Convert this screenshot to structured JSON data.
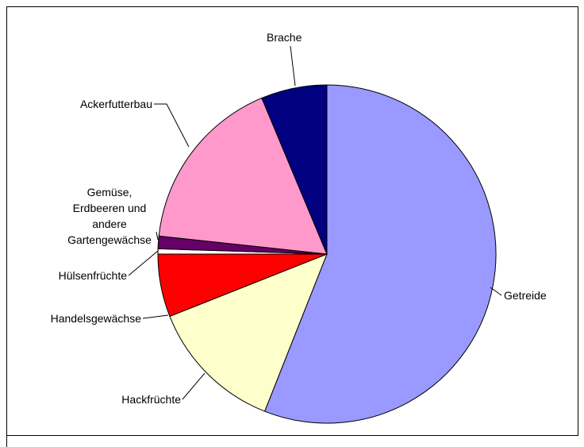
{
  "chart_data": {
    "type": "pie",
    "categories": [
      "Getreide",
      "Hackfrüchte",
      "Handelsgewächse",
      "Hülsenfrüchte",
      "Gemüse, Erdbeeren und andere Gartengewächse",
      "Ackerfutterbau",
      "Brache"
    ],
    "values": [
      56,
      13,
      6,
      0.5,
      1.2,
      17,
      6.3
    ],
    "colors": [
      "#9999ff",
      "#ffffcc",
      "#ff0000",
      "#ffffff",
      "#660066",
      "#ff99cc",
      "#000080"
    ]
  }
}
